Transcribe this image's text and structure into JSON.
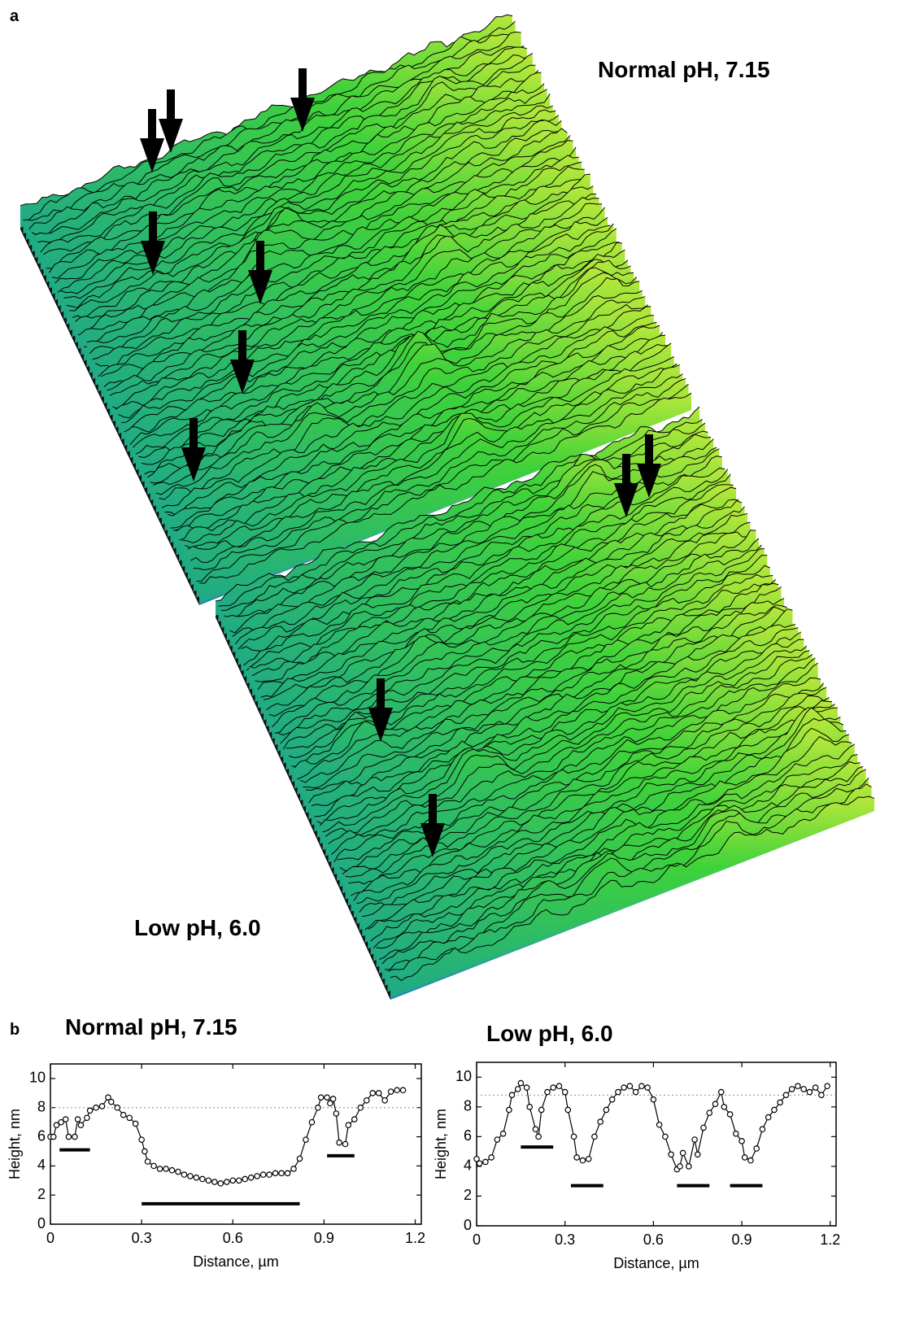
{
  "panel_labels": [
    "a",
    "b"
  ],
  "surface_labels": [
    "Normal pH, 7.15",
    "Low pH, 6.0"
  ],
  "chart_data": [
    {
      "type": "line",
      "title": "Normal pH, 7.15",
      "x_label": "Distance, µm",
      "y_label": "Height, nm",
      "color": "#000000",
      "x": [
        0,
        0.01,
        0.02,
        0.035,
        0.05,
        0.06,
        0.08,
        0.09,
        0.1,
        0.12,
        0.13,
        0.15,
        0.17,
        0.19,
        0.2,
        0.22,
        0.24,
        0.26,
        0.28,
        0.3,
        0.31,
        0.32,
        0.34,
        0.36,
        0.38,
        0.4,
        0.42,
        0.44,
        0.46,
        0.48,
        0.5,
        0.52,
        0.54,
        0.56,
        0.58,
        0.6,
        0.62,
        0.64,
        0.66,
        0.68,
        0.7,
        0.72,
        0.74,
        0.76,
        0.78,
        0.8,
        0.82,
        0.84,
        0.86,
        0.88,
        0.89,
        0.91,
        0.92,
        0.93,
        0.94,
        0.95,
        0.97,
        0.98,
        1.0,
        1.02,
        1.04,
        1.06,
        1.08,
        1.1,
        1.12,
        1.14,
        1.16
      ],
      "values": [
        6.0,
        6.0,
        6.8,
        7.0,
        7.2,
        6.0,
        6.0,
        7.2,
        6.8,
        7.3,
        7.8,
        8.0,
        8.1,
        8.7,
        8.4,
        8.0,
        7.5,
        7.3,
        6.9,
        5.8,
        5.0,
        4.3,
        4.0,
        3.8,
        3.8,
        3.7,
        3.6,
        3.4,
        3.3,
        3.2,
        3.1,
        3.0,
        2.9,
        2.8,
        2.9,
        3.0,
        3.0,
        3.1,
        3.2,
        3.3,
        3.4,
        3.4,
        3.5,
        3.5,
        3.5,
        3.8,
        4.5,
        5.8,
        7.0,
        8.0,
        8.7,
        8.7,
        8.3,
        8.6,
        7.6,
        5.6,
        5.5,
        6.8,
        7.2,
        8.0,
        8.5,
        9.0,
        9.0,
        8.5,
        9.1,
        9.2,
        9.2
      ],
      "reference_line": 8,
      "segments": [
        {
          "x": [
            0.03,
            0.13
          ],
          "y": 5.1
        },
        {
          "x": [
            0.3,
            0.82
          ],
          "y": 1.4
        },
        {
          "x": [
            0.91,
            1.0
          ],
          "y": 4.7
        }
      ],
      "xlim": [
        0,
        1.22
      ],
      "ylim": [
        0,
        11
      ],
      "xticks": [
        0,
        0.3,
        0.6,
        0.9,
        1.2
      ],
      "yticks": [
        0,
        2,
        4,
        6,
        8,
        10
      ]
    },
    {
      "type": "line",
      "title": "Low pH, 6.0",
      "x_label": "Distance, µm",
      "y_label": "Height, nm",
      "color": "#000000",
      "x": [
        0,
        0.01,
        0.03,
        0.05,
        0.07,
        0.09,
        0.11,
        0.12,
        0.14,
        0.15,
        0.17,
        0.18,
        0.2,
        0.21,
        0.22,
        0.24,
        0.26,
        0.28,
        0.3,
        0.31,
        0.33,
        0.34,
        0.36,
        0.38,
        0.4,
        0.42,
        0.44,
        0.46,
        0.48,
        0.5,
        0.52,
        0.54,
        0.56,
        0.58,
        0.6,
        0.62,
        0.64,
        0.66,
        0.68,
        0.69,
        0.7,
        0.72,
        0.74,
        0.75,
        0.77,
        0.79,
        0.81,
        0.83,
        0.84,
        0.86,
        0.88,
        0.9,
        0.91,
        0.93,
        0.95,
        0.97,
        0.99,
        1.01,
        1.03,
        1.05,
        1.07,
        1.09,
        1.11,
        1.13,
        1.15,
        1.17,
        1.19
      ],
      "values": [
        4.5,
        4.2,
        4.3,
        4.6,
        5.8,
        6.2,
        7.8,
        8.8,
        9.2,
        9.6,
        9.3,
        8.0,
        6.5,
        6.0,
        7.8,
        9.0,
        9.3,
        9.4,
        9.0,
        7.8,
        6.0,
        4.6,
        4.4,
        4.5,
        6.0,
        7.0,
        7.8,
        8.5,
        9.0,
        9.3,
        9.4,
        9.0,
        9.4,
        9.3,
        8.5,
        6.8,
        6.0,
        4.8,
        3.8,
        4.0,
        4.9,
        4.0,
        5.8,
        4.8,
        6.6,
        7.6,
        8.2,
        9.0,
        8.0,
        7.5,
        6.2,
        5.7,
        4.6,
        4.4,
        5.2,
        6.5,
        7.3,
        7.8,
        8.3,
        8.8,
        9.2,
        9.4,
        9.2,
        9.0,
        9.3,
        8.8,
        9.4
      ],
      "reference_line": 8.8,
      "segments": [
        {
          "x": [
            0.15,
            0.26
          ],
          "y": 5.3
        },
        {
          "x": [
            0.32,
            0.43
          ],
          "y": 2.7
        },
        {
          "x": [
            0.68,
            0.79
          ],
          "y": 2.7
        },
        {
          "x": [
            0.86,
            0.97
          ],
          "y": 2.7
        }
      ],
      "xlim": [
        0,
        1.22
      ],
      "ylim": [
        0,
        11
      ],
      "xticks": [
        0,
        0.3,
        0.6,
        0.9,
        1.2
      ],
      "yticks": [
        0,
        2,
        4,
        6,
        8,
        10
      ]
    }
  ]
}
